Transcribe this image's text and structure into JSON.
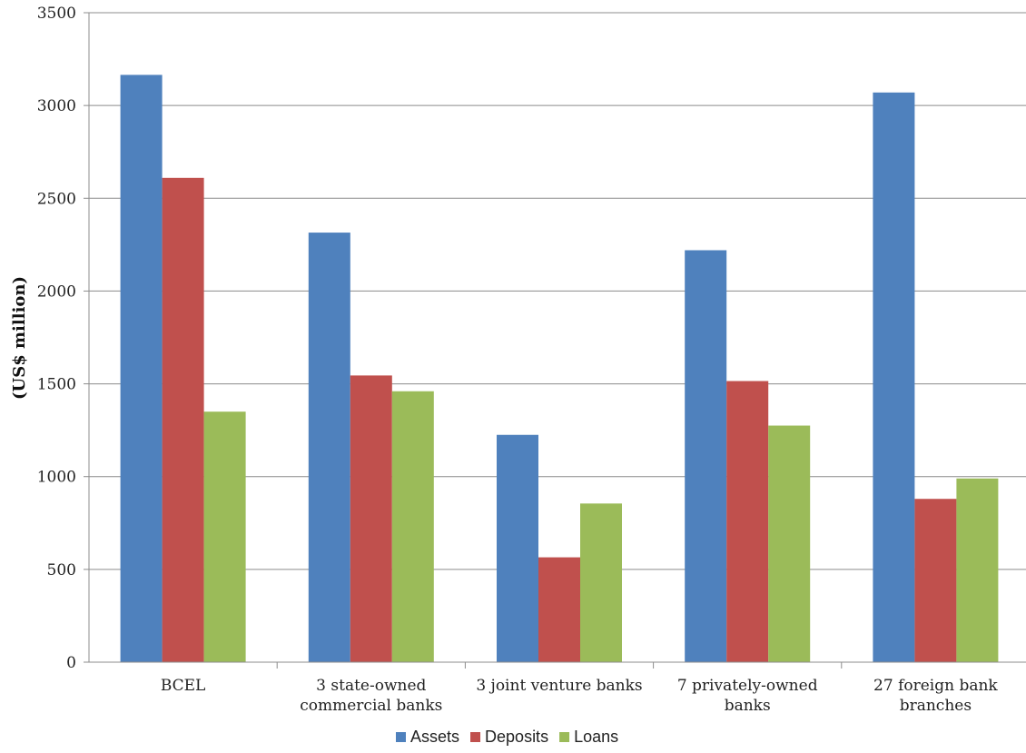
{
  "chart_data": {
    "type": "bar",
    "title": "",
    "xlabel": "",
    "ylabel": "(US$ million)",
    "ylim": [
      0,
      3500
    ],
    "yticks": [
      0,
      500,
      1000,
      1500,
      2000,
      2500,
      3000,
      3500
    ],
    "grid": true,
    "legend_position": "bottom",
    "categories": [
      [
        "BCEL"
      ],
      [
        "3 state-owned",
        "commercial banks"
      ],
      [
        "3 joint venture banks"
      ],
      [
        "7 privately-owned",
        "banks"
      ],
      [
        "27 foreign bank",
        "branches"
      ]
    ],
    "series": [
      {
        "name": "Assets",
        "color": "#4F81BD",
        "values": [
          3165,
          2315,
          1225,
          2220,
          3070
        ]
      },
      {
        "name": "Deposits",
        "color": "#C0504D",
        "values": [
          2610,
          1545,
          565,
          1515,
          880
        ]
      },
      {
        "name": "Loans",
        "color": "#9BBB59",
        "values": [
          1350,
          1460,
          855,
          1275,
          990
        ]
      }
    ]
  }
}
